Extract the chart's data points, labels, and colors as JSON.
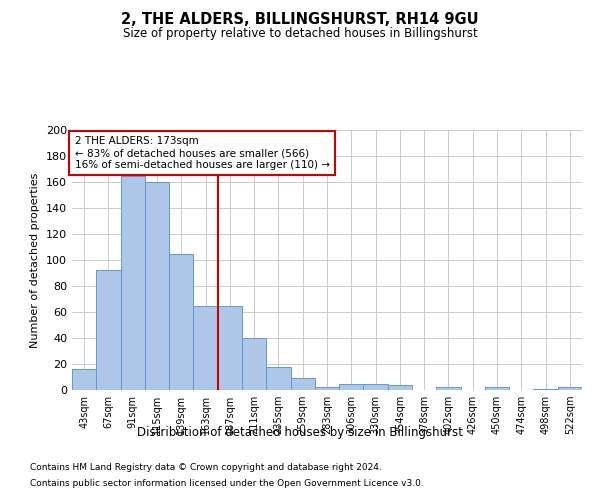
{
  "title": "2, THE ALDERS, BILLINGSHURST, RH14 9GU",
  "subtitle": "Size of property relative to detached houses in Billingshurst",
  "xlabel": "Distribution of detached houses by size in Billingshurst",
  "ylabel": "Number of detached properties",
  "categories": [
    "43sqm",
    "67sqm",
    "91sqm",
    "115sqm",
    "139sqm",
    "163sqm",
    "187sqm",
    "211sqm",
    "235sqm",
    "259sqm",
    "283sqm",
    "306sqm",
    "330sqm",
    "354sqm",
    "378sqm",
    "402sqm",
    "426sqm",
    "450sqm",
    "474sqm",
    "498sqm",
    "522sqm"
  ],
  "values": [
    16,
    92,
    165,
    160,
    105,
    65,
    65,
    40,
    18,
    9,
    2,
    5,
    5,
    4,
    0,
    2,
    0,
    2,
    0,
    1,
    2
  ],
  "bar_color": "#aec6e8",
  "bar_edge_color": "#5b9bd5",
  "marker_bin_index": 5,
  "marker_color": "#cc0000",
  "annotation_text": "2 THE ALDERS: 173sqm\n← 83% of detached houses are smaller (566)\n16% of semi-detached houses are larger (110) →",
  "annotation_box_color": "#ffffff",
  "annotation_box_edge": "#cc0000",
  "ylim": [
    0,
    200
  ],
  "yticks": [
    0,
    20,
    40,
    60,
    80,
    100,
    120,
    140,
    160,
    180,
    200
  ],
  "footer_line1": "Contains HM Land Registry data © Crown copyright and database right 2024.",
  "footer_line2": "Contains public sector information licensed under the Open Government Licence v3.0.",
  "background_color": "#ffffff",
  "grid_color": "#cccccc"
}
